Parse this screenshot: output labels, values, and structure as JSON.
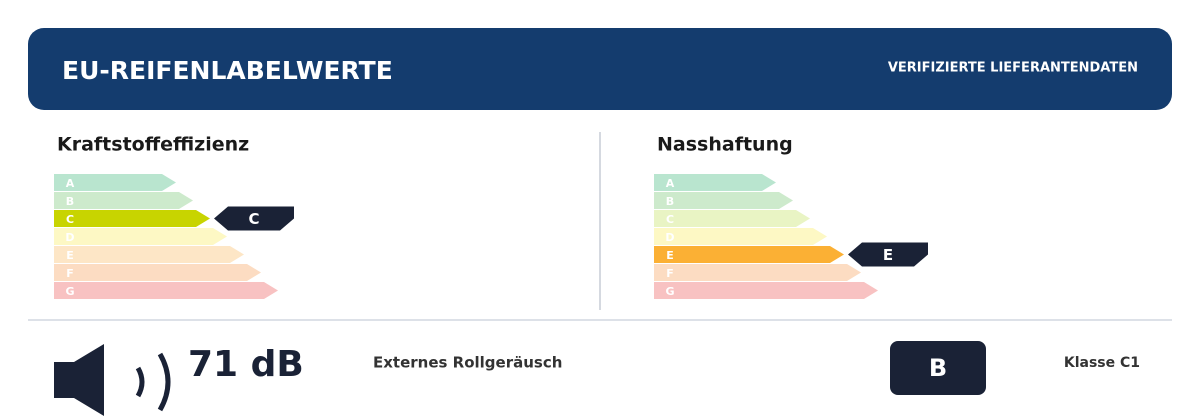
{
  "header": {
    "title": "EU-REIFENLABELWERTE",
    "badge": "VERIFIZIERTE LIEFERANTENDATEN"
  },
  "fuel": {
    "title": "Kraftstoffeffizienz",
    "classes": [
      "A",
      "B",
      "C",
      "D",
      "E",
      "F",
      "G"
    ],
    "rating": "C"
  },
  "wet": {
    "title": "Nasshaftung",
    "classes": [
      "A",
      "B",
      "C",
      "D",
      "E",
      "F",
      "G"
    ],
    "rating": "E"
  },
  "noise": {
    "value": "71 dB",
    "description": "Externes Rollgeräusch",
    "class": "B",
    "label": "Klasse C1"
  }
}
